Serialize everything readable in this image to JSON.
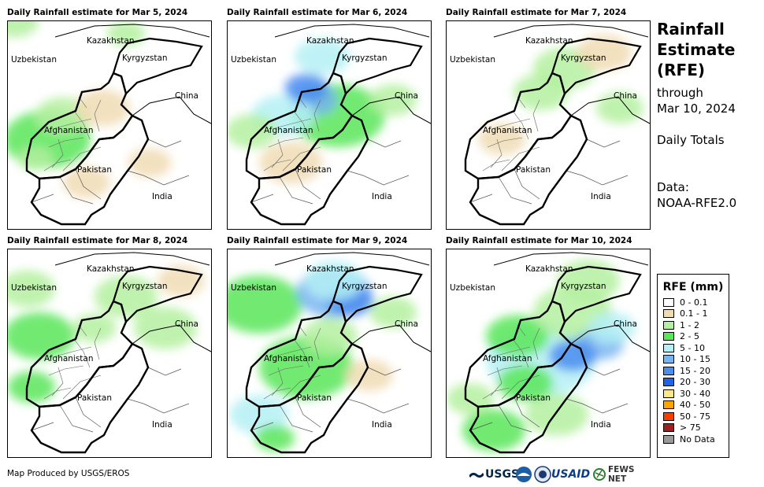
{
  "panels": [
    {
      "title": "Daily Rainfall estimate for Mar 5, 2024"
    },
    {
      "title": "Daily Rainfall estimate for Mar 6, 2024"
    },
    {
      "title": "Daily Rainfall estimate for Mar 7, 2024"
    },
    {
      "title": "Daily Rainfall estimate for Mar 8, 2024"
    },
    {
      "title": "Daily Rainfall estimate for Mar 9, 2024"
    },
    {
      "title": "Daily Rainfall estimate for Mar 10, 2024"
    }
  ],
  "map_labels": {
    "kazakhstan": "Kazakhstan",
    "uzbekistan": "Uzbekistan",
    "kyrgyzstan": "Kyrgyzstan",
    "china": "China",
    "afghanistan": "Afghanistan",
    "pakistan": "Pakistan",
    "india": "India"
  },
  "sidebar": {
    "title_line1": "Rainfall",
    "title_line2": "Estimate",
    "title_line3": "(RFE)",
    "through": "through",
    "date": "Mar 10, 2024",
    "totals": "Daily Totals",
    "data_label": "Data:",
    "data_source": "NOAA-RFE2.0"
  },
  "legend": {
    "title": "RFE (mm)",
    "items": [
      {
        "label": "0 - 0.1",
        "color": "#ffffff"
      },
      {
        "label": "0.1 - 1",
        "color": "#f0dcb4"
      },
      {
        "label": "1 - 2",
        "color": "#b4f0a0"
      },
      {
        "label": "2 - 5",
        "color": "#5ae65a"
      },
      {
        "label": "5 - 10",
        "color": "#b4f0f5"
      },
      {
        "label": "10 - 15",
        "color": "#78b4f0"
      },
      {
        "label": "15 - 20",
        "color": "#4a8cf0"
      },
      {
        "label": "20 - 30",
        "color": "#1e64e6"
      },
      {
        "label": "30 - 40",
        "color": "#ffe68c"
      },
      {
        "label": "40 - 50",
        "color": "#ffa500"
      },
      {
        "label": "50 - 75",
        "color": "#ff3c00"
      },
      {
        "label": "> 75",
        "color": "#a01e1e"
      },
      {
        "label": "No Data",
        "color": "#999999"
      }
    ]
  },
  "footer": {
    "credit": "Map Produced by USGS/EROS"
  },
  "logos": {
    "usgs": "USGS",
    "usaid": "USAID",
    "fewsnet": "FEWS NET"
  }
}
